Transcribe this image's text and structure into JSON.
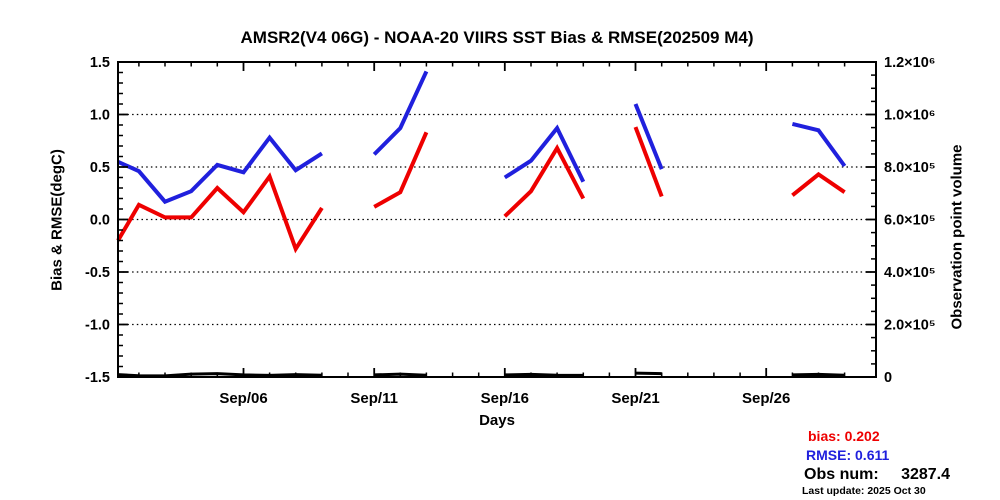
{
  "chart_data": {
    "type": "line",
    "title": "AMSR2(V4 06G) - NOAA-20 VIIRS SST Bias & RMSE(202509 M4)",
    "xlabel": "Days",
    "ylabel_left": "Bias & RMSE(degC)",
    "ylabel_right": "Observation point volume",
    "x_domain": [
      1.2,
      30.2
    ],
    "x_major_ticks": [
      {
        "day": 6,
        "label": "Sep/06"
      },
      {
        "day": 11,
        "label": "Sep/11"
      },
      {
        "day": 16,
        "label": "Sep/16"
      },
      {
        "day": 21,
        "label": "Sep/21"
      },
      {
        "day": 26,
        "label": "Sep/26"
      }
    ],
    "x_minor_step_days": 1,
    "ylim_left": [
      -1.5,
      1.5
    ],
    "yticks_left": [
      {
        "value": 1.5,
        "label": "1.5"
      },
      {
        "value": 1.0,
        "label": "1.0"
      },
      {
        "value": 0.5,
        "label": "0.5"
      },
      {
        "value": 0.0,
        "label": "0.0"
      },
      {
        "value": -0.5,
        "label": "-0.5"
      },
      {
        "value": -1.0,
        "label": "-1.0"
      },
      {
        "value": -1.5,
        "label": "-1.5"
      }
    ],
    "y_minor_step_left": 0.1,
    "ylim_right": [
      0,
      1200000
    ],
    "yticks_right": [
      {
        "value": 1200000,
        "label": "1.2×10⁶"
      },
      {
        "value": 1000000,
        "label": "1.0×10⁶"
      },
      {
        "value": 800000,
        "label": "8.0×10⁵"
      },
      {
        "value": 600000,
        "label": "6.0×10⁵"
      },
      {
        "value": 400000,
        "label": "4.0×10⁵"
      },
      {
        "value": 200000,
        "label": "2.0×10⁵"
      },
      {
        "value": 0,
        "label": "0"
      }
    ],
    "y_minor_step_right": 50000,
    "grid_values_left": [
      1.0,
      0.5,
      0.0,
      -0.5,
      -1.0
    ],
    "grid_style": "dotted",
    "series": [
      {
        "name": "bias",
        "color": "#ee0000",
        "axis": "left",
        "width": 4,
        "segments": [
          {
            "days": [
              1,
              2,
              3,
              4,
              5,
              6,
              7,
              8,
              9
            ],
            "values": [
              -0.2,
              0.14,
              0.02,
              0.02,
              0.3,
              0.07,
              0.41,
              -0.28,
              0.11
            ]
          },
          {
            "days": [
              11,
              12,
              13
            ],
            "values": [
              0.12,
              0.26,
              0.83
            ]
          },
          {
            "days": [
              16,
              17,
              18,
              19
            ],
            "values": [
              0.03,
              0.27,
              0.68,
              0.2
            ]
          },
          {
            "days": [
              21,
              22
            ],
            "values": [
              0.88,
              0.22
            ]
          },
          {
            "days": [
              27,
              28,
              29
            ],
            "values": [
              0.23,
              0.43,
              0.26
            ]
          }
        ]
      },
      {
        "name": "RMSE",
        "color": "#2020dd",
        "axis": "left",
        "width": 4,
        "segments": [
          {
            "days": [
              1,
              2,
              3,
              4,
              5,
              6,
              7,
              8,
              9
            ],
            "values": [
              0.55,
              0.46,
              0.17,
              0.27,
              0.52,
              0.45,
              0.78,
              0.47,
              0.63
            ]
          },
          {
            "days": [
              11,
              12,
              13
            ],
            "values": [
              0.62,
              0.87,
              1.41
            ]
          },
          {
            "days": [
              16,
              17,
              18,
              19
            ],
            "values": [
              0.4,
              0.56,
              0.87,
              0.36
            ]
          },
          {
            "days": [
              21,
              22
            ],
            "values": [
              1.1,
              0.48
            ]
          },
          {
            "days": [
              27,
              28,
              29
            ],
            "values": [
              0.91,
              0.85,
              0.51
            ]
          }
        ]
      },
      {
        "name": "observation-volume",
        "color": "#000000",
        "axis": "right",
        "width": 3,
        "segments": [
          {
            "days": [
              1,
              2,
              3,
              4,
              5,
              6,
              7,
              8,
              9
            ],
            "values": [
              9000,
              5000,
              4000,
              11000,
              13000,
              8000,
              6000,
              9000,
              7000
            ]
          },
          {
            "days": [
              11,
              12,
              13
            ],
            "values": [
              8000,
              11000,
              7000
            ]
          },
          {
            "days": [
              16,
              17,
              18,
              19
            ],
            "values": [
              8000,
              10000,
              7000,
              6000
            ]
          },
          {
            "days": [
              21,
              22
            ],
            "values": [
              15000,
              13000
            ]
          },
          {
            "days": [
              27,
              28,
              29
            ],
            "values": [
              8000,
              10000,
              7000
            ]
          }
        ]
      }
    ]
  },
  "legend": {
    "bias_label": "bias:",
    "bias_value": "0.202",
    "rmse_label": "RMSE:",
    "rmse_value": "0.611",
    "obs_label": "Obs num:",
    "obs_value": "3287.4",
    "last_update": "Last update: 2025 Oct 30"
  },
  "colors": {
    "bias": "#ee0000",
    "rmse": "#2020dd",
    "observation_volume": "#000000",
    "background": "#ffffff",
    "frame": "#000000"
  }
}
